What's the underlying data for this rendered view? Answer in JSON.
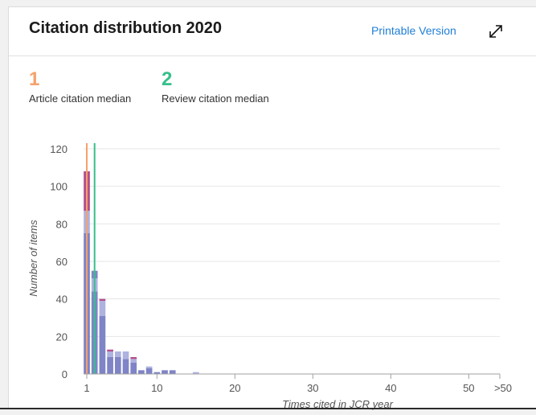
{
  "header": {
    "title": "Citation distribution 2020",
    "printable_label": "Printable Version"
  },
  "medians": [
    {
      "value": "1",
      "label": "Article citation median",
      "color": "#f5a26b"
    },
    {
      "value": "2",
      "label": "Review citation median",
      "color": "#36c08b"
    }
  ],
  "chart_data": {
    "type": "bar",
    "xlabel": "Times cited in JCR year",
    "ylabel": "Number of items",
    "ylim": [
      0,
      120
    ],
    "yticks": [
      0,
      20,
      40,
      60,
      80,
      100,
      120
    ],
    "xticks": [
      {
        "x": 1,
        "label": "1"
      },
      {
        "x": 10,
        "label": "10"
      },
      {
        "x": 20,
        "label": "20"
      },
      {
        "x": 30,
        "label": "30"
      },
      {
        "x": 40,
        "label": "40"
      },
      {
        "x": 50,
        "label": "50"
      },
      {
        "x": 51,
        "label": ">50"
      }
    ],
    "grid": true,
    "colors": {
      "dark": "#7e84c6",
      "light": "#aeb2df",
      "magenta": "#b24f8c",
      "axis": "#a0a0a0",
      "grid": "#e6e6e6",
      "tick_text": "#555555"
    },
    "bars": [
      {
        "x": 1,
        "segments": [
          {
            "value": 75,
            "shade": "dark"
          },
          {
            "value": 12,
            "shade": "light"
          },
          {
            "value": 21,
            "shade": "magenta"
          }
        ]
      },
      {
        "x": 2,
        "segments": [
          {
            "value": 44,
            "shade": "dark"
          },
          {
            "value": 7,
            "shade": "light"
          },
          {
            "value": 4,
            "shade": "dark"
          }
        ]
      },
      {
        "x": 3,
        "segments": [
          {
            "value": 31,
            "shade": "dark"
          },
          {
            "value": 8,
            "shade": "light"
          },
          {
            "value": 1,
            "shade": "magenta"
          }
        ]
      },
      {
        "x": 4,
        "segments": [
          {
            "value": 9,
            "shade": "dark"
          },
          {
            "value": 3,
            "shade": "light"
          },
          {
            "value": 1,
            "shade": "magenta"
          }
        ]
      },
      {
        "x": 5,
        "segments": [
          {
            "value": 9,
            "shade": "dark"
          },
          {
            "value": 3,
            "shade": "light"
          }
        ]
      },
      {
        "x": 6,
        "segments": [
          {
            "value": 8,
            "shade": "dark"
          },
          {
            "value": 4,
            "shade": "light"
          }
        ]
      },
      {
        "x": 7,
        "segments": [
          {
            "value": 6,
            "shade": "dark"
          },
          {
            "value": 2,
            "shade": "light"
          },
          {
            "value": 1,
            "shade": "magenta"
          }
        ]
      },
      {
        "x": 8,
        "segments": [
          {
            "value": 2,
            "shade": "dark"
          }
        ]
      },
      {
        "x": 9,
        "segments": [
          {
            "value": 3,
            "shade": "dark"
          },
          {
            "value": 1,
            "shade": "light"
          }
        ]
      },
      {
        "x": 10,
        "segments": [
          {
            "value": 1,
            "shade": "dark"
          }
        ]
      },
      {
        "x": 11,
        "segments": [
          {
            "value": 2,
            "shade": "dark"
          }
        ]
      },
      {
        "x": 12,
        "segments": [
          {
            "value": 2,
            "shade": "dark"
          }
        ]
      },
      {
        "x": 15,
        "segments": [
          {
            "value": 1,
            "shade": "light"
          }
        ]
      }
    ],
    "median_lines": [
      {
        "x": 1,
        "color": "#f5a26b"
      },
      {
        "x": 2,
        "color": "#36c08b"
      }
    ]
  }
}
